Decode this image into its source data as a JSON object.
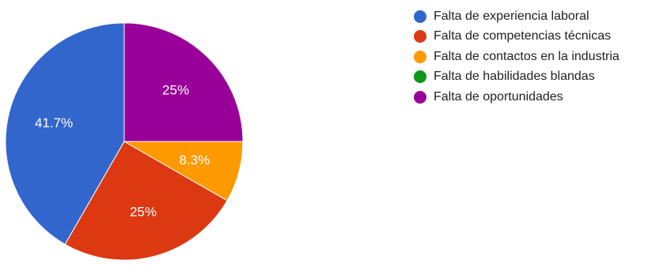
{
  "chart_data": {
    "type": "pie",
    "categories": [
      "Falta de experiencia laboral",
      "Falta de competencias técnicas",
      "Falta de contactos en la industria",
      "Falta de habilidades blandas",
      "Falta de oportunidades"
    ],
    "values": [
      41.7,
      25,
      8.3,
      0,
      25
    ],
    "value_labels": [
      "41.7%",
      "25%",
      "8.3%",
      "",
      "25%"
    ],
    "colors": [
      "#3366cc",
      "#dc3912",
      "#ff9900",
      "#109618",
      "#990099"
    ],
    "start": "12 o'clock",
    "direction": "counter-clockwise",
    "legend_position": "right",
    "title": ""
  }
}
